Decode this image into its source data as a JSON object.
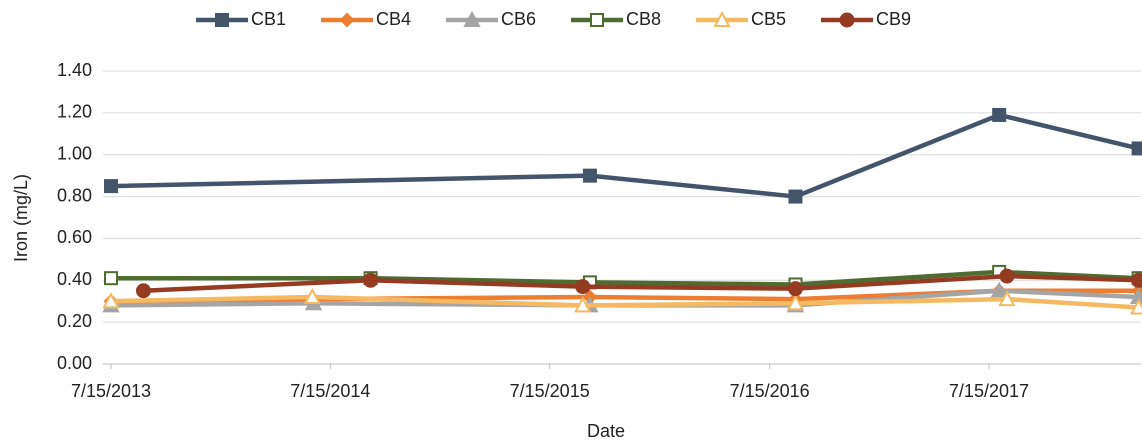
{
  "chart_data": {
    "type": "line",
    "xlabel": "Date",
    "ylabel": "Iron (mg/L)",
    "xlim": [
      "2013-07-15",
      "2018-03-25"
    ],
    "xticks": [
      {
        "value": "2013-07-15",
        "label": "7/15/2013"
      },
      {
        "value": "2014-07-15",
        "label": "7/15/2014"
      },
      {
        "value": "2015-07-15",
        "label": "7/15/2015"
      },
      {
        "value": "2016-07-15",
        "label": "7/15/2016"
      },
      {
        "value": "2017-07-15",
        "label": "7/15/2017"
      }
    ],
    "ylim": [
      0,
      1.4
    ],
    "yticks": [
      {
        "value": 0,
        "label": "0.00"
      },
      {
        "value": 0.2,
        "label": "0.20"
      },
      {
        "value": 0.4,
        "label": "0.40"
      },
      {
        "value": 0.6,
        "label": "0.60"
      },
      {
        "value": 0.8,
        "label": "0.80"
      },
      {
        "value": 1.0,
        "label": "1.00"
      },
      {
        "value": 1.2,
        "label": "1.20"
      },
      {
        "value": 1.4,
        "label": "1.40"
      }
    ],
    "grid": true,
    "legend": "top",
    "series": [
      {
        "name": "CB1",
        "color": "#44546a",
        "marker": "square",
        "x": [
          "2013-07-15",
          "2015-09-20",
          "2016-08-27",
          "2017-08-01",
          "2018-03-21"
        ],
        "values": [
          0.85,
          0.9,
          0.8,
          1.19,
          1.03
        ]
      },
      {
        "name": "CB4",
        "color": "#ed7d31",
        "marker": "diamond",
        "x": [
          "2013-07-15",
          "2014-06-15",
          "2015-09-20",
          "2016-08-27",
          "2017-08-01",
          "2018-03-21"
        ],
        "values": [
          0.3,
          0.31,
          0.32,
          0.31,
          0.35,
          0.35
        ]
      },
      {
        "name": "CB6",
        "color": "#a5a5a5",
        "marker": "triangle",
        "x": [
          "2013-07-15",
          "2014-06-17",
          "2015-09-20",
          "2016-08-27",
          "2017-08-01",
          "2018-03-21"
        ],
        "values": [
          0.28,
          0.29,
          0.28,
          0.28,
          0.35,
          0.32
        ]
      },
      {
        "name": "CB8",
        "color": "#4e6b30",
        "marker": "square-open",
        "x": [
          "2013-07-15",
          "2014-09-20",
          "2015-09-20",
          "2016-08-27",
          "2017-08-01",
          "2018-03-21"
        ],
        "values": [
          0.41,
          0.41,
          0.39,
          0.38,
          0.44,
          0.41
        ]
      },
      {
        "name": "CB5",
        "color": "#f4b961",
        "marker": "triangle-open",
        "x": [
          "2013-07-15",
          "2014-06-15",
          "2015-09-08",
          "2016-08-27",
          "2017-08-14",
          "2018-03-21"
        ],
        "values": [
          0.3,
          0.32,
          0.28,
          0.29,
          0.31,
          0.27
        ]
      },
      {
        "name": "CB9",
        "color": "#943b22",
        "marker": "circle",
        "x": [
          "2013-09-07",
          "2014-09-20",
          "2015-09-08",
          "2016-08-27",
          "2017-08-14",
          "2018-03-21"
        ],
        "values": [
          0.35,
          0.4,
          0.37,
          0.36,
          0.42,
          0.4
        ]
      }
    ]
  }
}
